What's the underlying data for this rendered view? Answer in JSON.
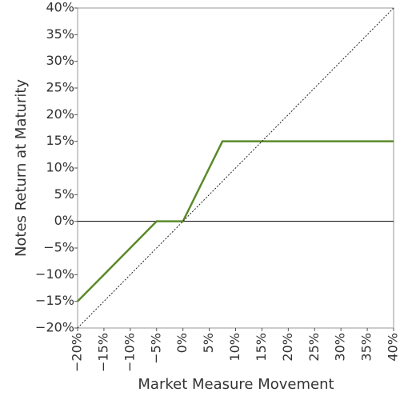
{
  "chart_data": {
    "type": "line",
    "x_label": "Market Measure Movement",
    "y_label": "Notes Return at Maturity",
    "x": [
      -20,
      -5,
      0,
      7.5,
      40
    ],
    "series": [
      {
        "color": "#5a8a2a",
        "values": [
          -15,
          0,
          0,
          15,
          15
        ]
      },
      {
        "color": "#222222",
        "dash": "dotted",
        "values": [
          -20,
          -5,
          0,
          7.5,
          40
        ]
      }
    ],
    "xlim": [
      -20,
      40
    ],
    "ylim": [
      -20,
      40
    ],
    "xticks": [
      {
        "value": -20,
        "label": "−20%"
      },
      {
        "value": -15,
        "label": "−15%"
      },
      {
        "value": -10,
        "label": "−10%"
      },
      {
        "value": -5,
        "label": "−5%"
      },
      {
        "value": 0,
        "label": "0%"
      },
      {
        "value": 5,
        "label": "5%"
      },
      {
        "value": 10,
        "label": "10%"
      },
      {
        "value": 15,
        "label": "15%"
      },
      {
        "value": 20,
        "label": "20%"
      },
      {
        "value": 25,
        "label": "25%"
      },
      {
        "value": 30,
        "label": "30%"
      },
      {
        "value": 35,
        "label": "35%"
      },
      {
        "value": 40,
        "label": "40%"
      }
    ],
    "yticks": [
      {
        "value": -20,
        "label": "−20%"
      },
      {
        "value": -15,
        "label": "−15%"
      },
      {
        "value": -10,
        "label": "−10%"
      },
      {
        "value": -5,
        "label": "−5%"
      },
      {
        "value": 0,
        "label": "0%"
      },
      {
        "value": 5,
        "label": "5%"
      },
      {
        "value": 10,
        "label": "10%"
      },
      {
        "value": 15,
        "label": "15%"
      },
      {
        "value": 20,
        "label": "20%"
      },
      {
        "value": 25,
        "label": "25%"
      },
      {
        "value": 30,
        "label": "30%"
      },
      {
        "value": 35,
        "label": "35%"
      },
      {
        "value": 40,
        "label": "40%"
      }
    ]
  }
}
